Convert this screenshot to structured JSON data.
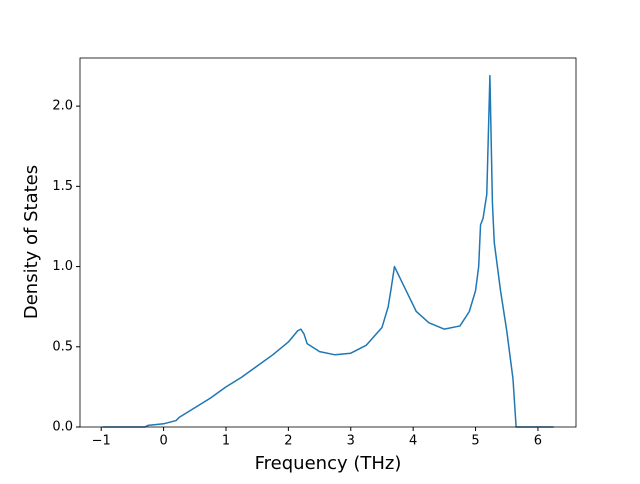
{
  "chart_data": {
    "type": "line",
    "xlabel": "Frequency (THz)",
    "ylabel": "Density of States",
    "x": [
      -0.98,
      -0.3,
      -0.25,
      0,
      0.2,
      0.25,
      0.5,
      0.75,
      1.0,
      1.25,
      1.5,
      1.75,
      2.0,
      2.15,
      2.2,
      2.25,
      2.3,
      2.5,
      2.75,
      3.0,
      3.25,
      3.5,
      3.6,
      3.65,
      3.7,
      3.8,
      3.95,
      4.05,
      4.25,
      4.5,
      4.75,
      4.9,
      5.0,
      5.05,
      5.08,
      5.12,
      5.18,
      5.23,
      5.27,
      5.3,
      5.4,
      5.5,
      5.6,
      5.65,
      6.25
    ],
    "series": [
      {
        "color": "#1f77b4",
        "values": [
          0,
          0,
          0.01,
          0.02,
          0.04,
          0.06,
          0.12,
          0.18,
          0.25,
          0.31,
          0.38,
          0.45,
          0.53,
          0.6,
          0.61,
          0.58,
          0.52,
          0.47,
          0.45,
          0.46,
          0.51,
          0.62,
          0.75,
          0.87,
          1.0,
          0.92,
          0.8,
          0.72,
          0.65,
          0.61,
          0.63,
          0.72,
          0.85,
          1.0,
          1.26,
          1.3,
          1.45,
          2.19,
          1.4,
          1.15,
          0.85,
          0.6,
          0.3,
          0,
          0
        ]
      }
    ],
    "xlim": [
      -1.34,
      6.61
    ],
    "ylim": [
      0,
      2.3
    ],
    "xticks": [
      {
        "value": -1,
        "label": "−1"
      },
      0,
      1,
      2,
      3,
      4,
      5,
      6
    ],
    "yticks": [
      {
        "value": 0,
        "label": "0.0"
      },
      {
        "value": 0.5,
        "label": "0.5"
      },
      {
        "value": 1,
        "label": "1.0"
      },
      {
        "value": 1.5,
        "label": "1.5"
      },
      {
        "value": 2,
        "label": "2.0"
      }
    ]
  }
}
